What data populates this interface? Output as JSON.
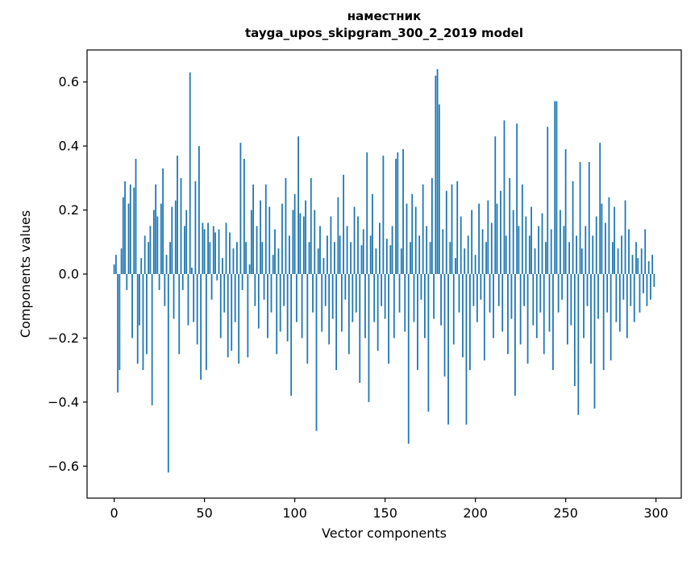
{
  "chart_data": {
    "type": "bar",
    "title": "наместник",
    "subtitle": "tayga_upos_skipgram_300_2_2019 model",
    "xlabel": "Vector components",
    "ylabel": "Components values",
    "xlim": [
      -15,
      314
    ],
    "ylim": [
      -0.7,
      0.7
    ],
    "xticks": [
      0,
      50,
      100,
      150,
      200,
      250,
      300
    ],
    "yticks": [
      -0.6,
      -0.4,
      -0.2,
      0.0,
      0.2,
      0.4,
      0.6
    ],
    "bar_color": "#1f77b4",
    "spine_color": "#000000",
    "bar_width": 0.8,
    "n_components": 300,
    "grid": false,
    "legend": "none",
    "values": [
      0.03,
      0.06,
      -0.37,
      -0.3,
      0.08,
      0.24,
      0.29,
      -0.05,
      0.22,
      0.28,
      -0.2,
      0.27,
      0.36,
      -0.28,
      -0.16,
      0.05,
      -0.3,
      0.12,
      -0.25,
      0.1,
      0.15,
      -0.41,
      0.2,
      0.28,
      0.18,
      -0.05,
      0.22,
      0.33,
      -0.1,
      0.06,
      -0.62,
      0.1,
      0.21,
      -0.14,
      0.23,
      0.37,
      -0.25,
      0.3,
      -0.05,
      0.15,
      0.2,
      -0.16,
      0.63,
      0.02,
      -0.15,
      0.29,
      -0.22,
      0.4,
      -0.33,
      0.16,
      0.14,
      -0.3,
      0.16,
      0.1,
      -0.08,
      0.15,
      0.13,
      -0.02,
      0.14,
      -0.2,
      0.05,
      -0.12,
      0.16,
      -0.26,
      0.13,
      -0.24,
      0.08,
      -0.15,
      0.1,
      -0.28,
      0.41,
      -0.05,
      0.36,
      0.1,
      -0.26,
      0.03,
      0.2,
      0.28,
      -0.1,
      0.15,
      -0.17,
      0.23,
      0.1,
      -0.08,
      0.28,
      -0.2,
      0.21,
      -0.12,
      0.06,
      0.14,
      -0.25,
      0.08,
      -0.18,
      0.22,
      -0.1,
      0.3,
      -0.21,
      0.12,
      -0.38,
      0.2,
      0.25,
      -0.15,
      0.43,
      0.19,
      -0.2,
      0.18,
      0.23,
      -0.28,
      0.1,
      0.3,
      -0.12,
      0.2,
      -0.49,
      0.08,
      0.15,
      -0.18,
      0.05,
      -0.1,
      0.12,
      -0.22,
      0.18,
      -0.14,
      0.1,
      -0.3,
      0.24,
      0.12,
      -0.18,
      0.31,
      -0.08,
      0.15,
      -0.25,
      0.1,
      -0.15,
      0.21,
      -0.12,
      0.18,
      -0.34,
      0.09,
      0.14,
      -0.2,
      0.38,
      -0.4,
      0.12,
      0.25,
      -0.15,
      0.08,
      -0.24,
      0.16,
      -0.1,
      0.37,
      -0.14,
      0.11,
      -0.28,
      0.09,
      0.15,
      -0.2,
      0.36,
      0.38,
      -0.12,
      0.08,
      0.39,
      -0.18,
      0.22,
      -0.53,
      0.1,
      0.25,
      -0.15,
      0.21,
      -0.3,
      0.12,
      -0.08,
      0.28,
      -0.2,
      0.15,
      -0.43,
      0.1,
      0.3,
      -0.14,
      0.62,
      0.64,
      0.53,
      -0.16,
      0.14,
      -0.32,
      0.26,
      -0.47,
      0.1,
      0.28,
      -0.22,
      0.05,
      0.29,
      -0.12,
      0.18,
      -0.26,
      0.08,
      -0.47,
      0.12,
      -0.3,
      0.2,
      -0.1,
      0.06,
      -0.15,
      0.22,
      -0.08,
      0.14,
      -0.27,
      0.1,
      0.23,
      -0.12,
      0.16,
      -0.2,
      0.43,
      0.22,
      -0.1,
      0.26,
      -0.18,
      0.48,
      0.12,
      -0.25,
      0.3,
      -0.14,
      0.2,
      -0.38,
      0.47,
      0.15,
      -0.22,
      0.28,
      -0.1,
      0.18,
      -0.28,
      0.12,
      0.21,
      -0.16,
      0.08,
      -0.2,
      0.15,
      -0.12,
      0.19,
      -0.25,
      0.1,
      0.46,
      -0.18,
      0.14,
      -0.3,
      0.54,
      0.54,
      -0.12,
      0.2,
      -0.08,
      0.15,
      0.39,
      -0.22,
      0.1,
      -0.16,
      0.29,
      -0.35,
      0.12,
      -0.44,
      0.35,
      0.08,
      -0.2,
      0.15,
      -0.1,
      0.35,
      -0.28,
      0.12,
      -0.42,
      0.18,
      -0.14,
      0.41,
      0.22,
      -0.3,
      0.16,
      -0.12,
      0.24,
      -0.27,
      0.1,
      0.21,
      -0.15,
      0.08,
      -0.18,
      0.12,
      -0.08,
      0.23,
      -0.2,
      0.14,
      -0.1,
      0.06,
      -0.15,
      0.1,
      0.05,
      -0.12,
      0.08,
      -0.06,
      0.14,
      -0.1,
      0.04,
      -0.08,
      0.06,
      -0.04
    ]
  }
}
